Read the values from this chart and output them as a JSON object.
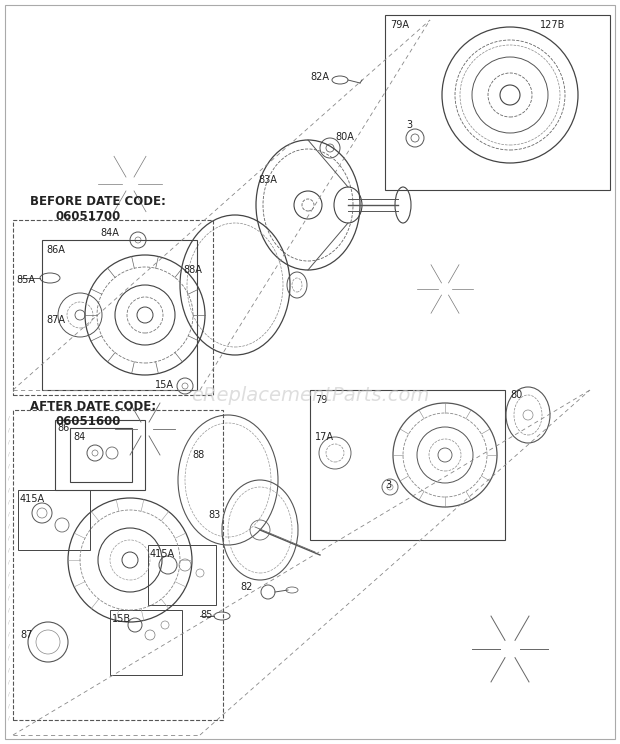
{
  "bg_color": "#ffffff",
  "watermark": "eReplacementParts.com",
  "watermark_color": "#c8c8c8",
  "figsize": [
    6.2,
    7.44
  ],
  "dpi": 100,
  "xlim": [
    0,
    620
  ],
  "ylim": [
    0,
    744
  ]
}
